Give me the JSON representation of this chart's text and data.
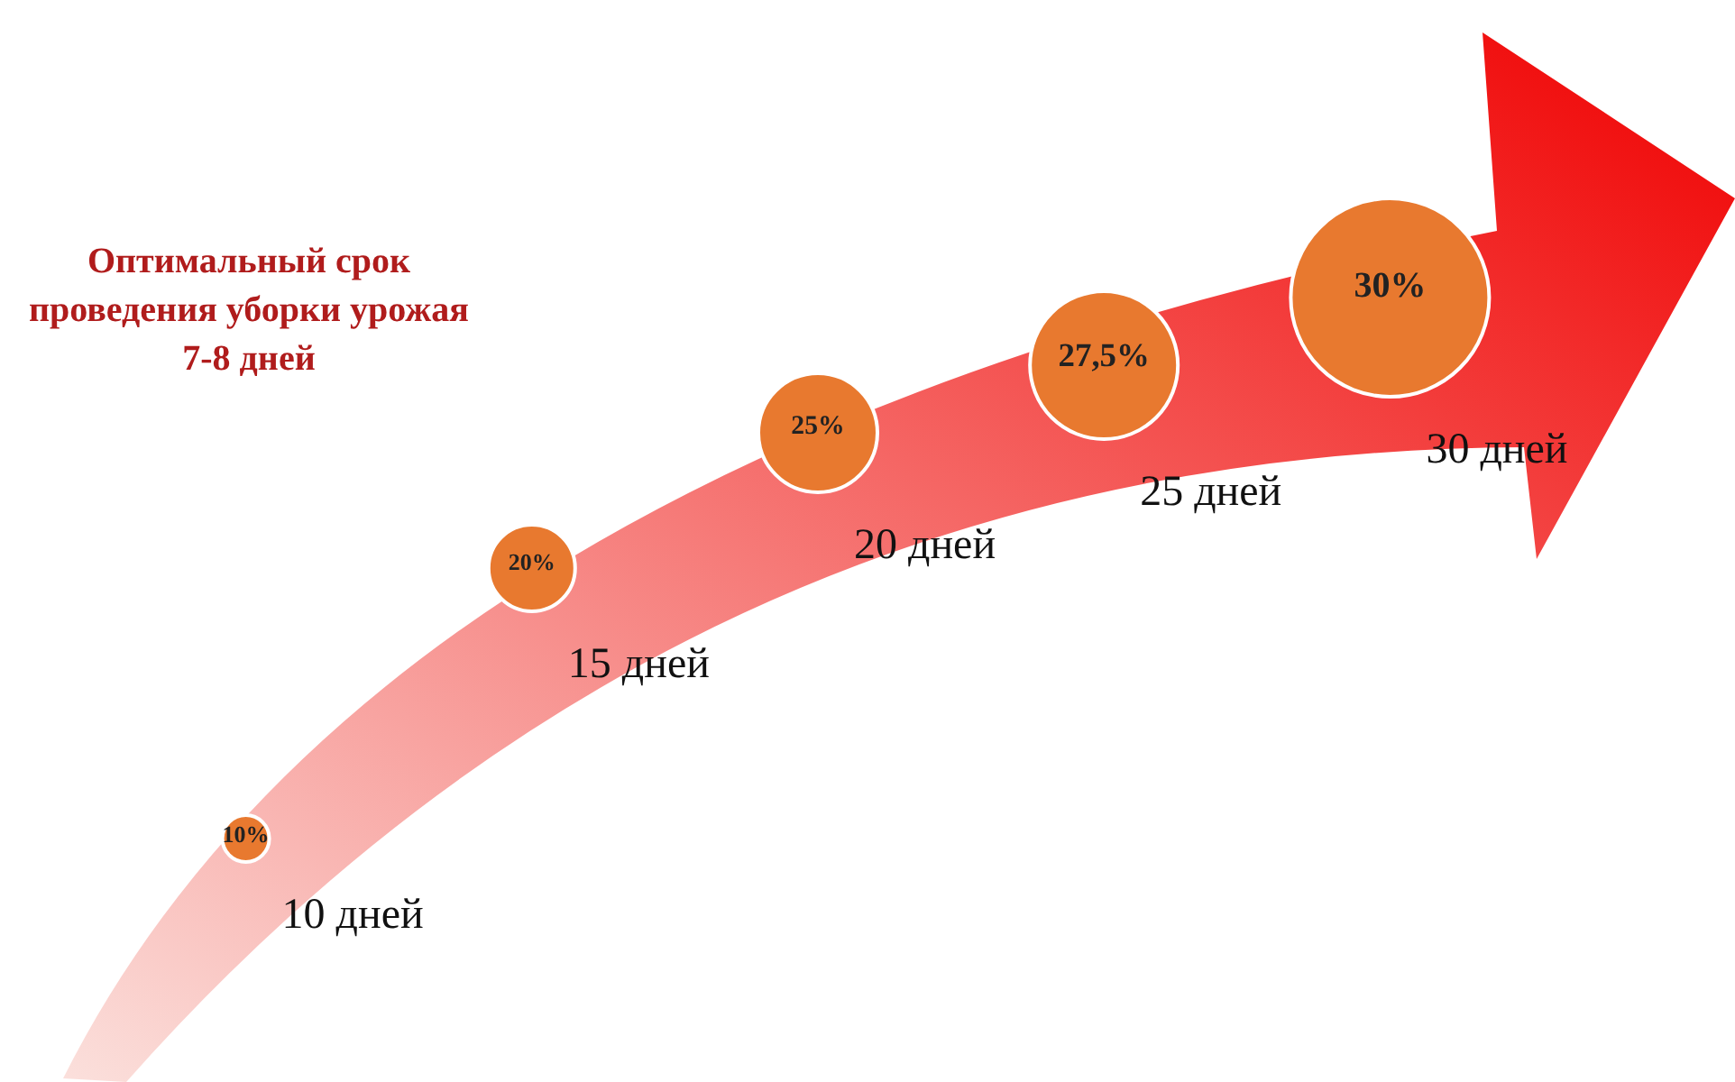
{
  "chart_data": {
    "type": "other",
    "title": "Оптимальный срок проведения уборки урожая 7-8 дней",
    "categories": [
      "10 дней",
      "15 дней",
      "20 дней",
      "25 дней",
      "30 дней"
    ],
    "values": [
      10,
      20,
      25,
      27.5,
      30
    ],
    "value_labels": [
      "10%",
      "20%",
      "25%",
      "27,5%",
      "30%"
    ],
    "color": "#e8792f"
  }
}
